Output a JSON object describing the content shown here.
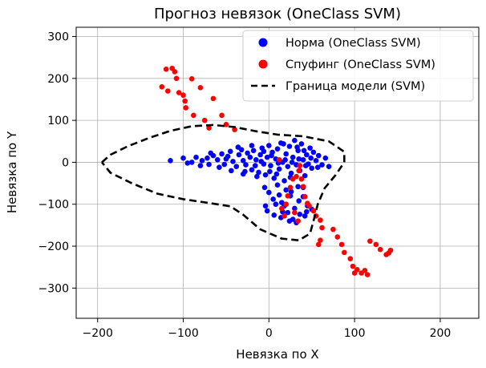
{
  "chart_data": {
    "type": "scatter",
    "title": "Прогноз невязок (OneClass SVM)",
    "xlabel": "Невязка по X",
    "ylabel": "Невязка по Y",
    "xlim": [
      -225,
      245
    ],
    "ylim": [
      -372,
      322
    ],
    "xticks": [
      -200,
      -100,
      0,
      100,
      200
    ],
    "yticks": [
      -300,
      -200,
      -100,
      0,
      100,
      200,
      300
    ],
    "xtick_labels": [
      "−200",
      "−100",
      "0",
      "100",
      "200"
    ],
    "ytick_labels": [
      "−300",
      "−200",
      "−100",
      "0",
      "100",
      "200",
      "300"
    ],
    "grid": true,
    "legend_position": "top-right",
    "series": [
      {
        "name": "Норма (OneClass SVM)",
        "color": "#0000ff",
        "kind": "points",
        "points": [
          [
            -115,
            4
          ],
          [
            -100,
            10
          ],
          [
            -95,
            -2
          ],
          [
            -85,
            12
          ],
          [
            -78,
            4
          ],
          [
            -72,
            10
          ],
          [
            -70,
            -5
          ],
          [
            -65,
            16
          ],
          [
            -60,
            6
          ],
          [
            -55,
            20
          ],
          [
            -52,
            -5
          ],
          [
            -48,
            14
          ],
          [
            -45,
            26
          ],
          [
            -42,
            2
          ],
          [
            -38,
            -10
          ],
          [
            -35,
            18
          ],
          [
            -32,
            30
          ],
          [
            -30,
            4
          ],
          [
            -27,
            -6
          ],
          [
            -25,
            22
          ],
          [
            -22,
            12
          ],
          [
            -20,
            -18
          ],
          [
            -18,
            28
          ],
          [
            -15,
            6
          ],
          [
            -12,
            -24
          ],
          [
            -10,
            18
          ],
          [
            -8,
            34
          ],
          [
            -6,
            -4
          ],
          [
            -4,
            -30
          ],
          [
            -2,
            12
          ],
          [
            0,
            40
          ],
          [
            2,
            -8
          ],
          [
            4,
            24
          ],
          [
            6,
            -38
          ],
          [
            8,
            8
          ],
          [
            10,
            32
          ],
          [
            12,
            -16
          ],
          [
            14,
            46
          ],
          [
            16,
            0
          ],
          [
            18,
            -44
          ],
          [
            20,
            20
          ],
          [
            22,
            -10
          ],
          [
            24,
            38
          ],
          [
            26,
            -26
          ],
          [
            28,
            12
          ],
          [
            30,
            52
          ],
          [
            32,
            -6
          ],
          [
            34,
            28
          ],
          [
            36,
            -20
          ],
          [
            38,
            44
          ],
          [
            40,
            6
          ],
          [
            42,
            -32
          ],
          [
            44,
            18
          ],
          [
            46,
            -4
          ],
          [
            48,
            34
          ],
          [
            50,
            -14
          ],
          [
            52,
            24
          ],
          [
            55,
            4
          ],
          [
            58,
            16
          ],
          [
            62,
            -6
          ],
          [
            66,
            10
          ],
          [
            70,
            -10
          ],
          [
            -90,
            0
          ],
          [
            -80,
            -8
          ],
          [
            -68,
            22
          ],
          [
            -58,
            -12
          ],
          [
            -50,
            8
          ],
          [
            -44,
            -20
          ],
          [
            -36,
            36
          ],
          [
            -28,
            -22
          ],
          [
            -20,
            40
          ],
          [
            -14,
            -34
          ],
          [
            -6,
            26
          ],
          [
            1,
            -22
          ],
          [
            9,
            -28
          ],
          [
            17,
            44
          ],
          [
            25,
            -36
          ],
          [
            33,
            36
          ],
          [
            41,
            28
          ],
          [
            49,
            10
          ],
          [
            57,
            -12
          ],
          [
            -30,
            -28
          ],
          [
            -16,
            -8
          ],
          [
            -9,
            2
          ],
          [
            3,
            16
          ],
          [
            11,
            -2
          ],
          [
            19,
            6
          ],
          [
            27,
            0
          ],
          [
            35,
            8
          ],
          [
            43,
            -8
          ],
          [
            -5,
            -60
          ],
          [
            0,
            -72
          ],
          [
            5,
            -88
          ],
          [
            10,
            -54
          ],
          [
            15,
            -96
          ],
          [
            20,
            -66
          ],
          [
            25,
            -80
          ],
          [
            30,
            -110
          ],
          [
            35,
            -92
          ],
          [
            40,
            -60
          ],
          [
            45,
            -104
          ],
          [
            -2,
            -116
          ],
          [
            6,
            -126
          ],
          [
            14,
            -132
          ],
          [
            22,
            -120
          ],
          [
            28,
            -136
          ],
          [
            36,
            -124
          ],
          [
            44,
            -118
          ],
          [
            50,
            -112
          ],
          [
            12,
            -78
          ],
          [
            18,
            -104
          ],
          [
            26,
            -70
          ],
          [
            34,
            -58
          ],
          [
            40,
            -82
          ],
          [
            8,
            -100
          ],
          [
            -4,
            -104
          ],
          [
            24,
            -140
          ],
          [
            32,
            -144
          ],
          [
            42,
            -128
          ],
          [
            16,
            -118
          ]
        ]
      },
      {
        "name": "Спуфинг (OneClass SVM)",
        "color": "#ff0000",
        "kind": "points",
        "points": [
          [
            -120,
            222
          ],
          [
            -110,
            216
          ],
          [
            -113,
            224
          ],
          [
            -125,
            180
          ],
          [
            -118,
            170
          ],
          [
            -108,
            200
          ],
          [
            -105,
            166
          ],
          [
            -100,
            160
          ],
          [
            -98,
            146
          ],
          [
            -97,
            130
          ],
          [
            -90,
            199
          ],
          [
            -80,
            178
          ],
          [
            -88,
            112
          ],
          [
            -75,
            100
          ],
          [
            -70,
            82
          ],
          [
            -65,
            152
          ],
          [
            -55,
            112
          ],
          [
            -50,
            90
          ],
          [
            -40,
            78
          ],
          [
            35,
            -20
          ],
          [
            38,
            -40
          ],
          [
            40,
            -58
          ],
          [
            42,
            -82
          ],
          [
            45,
            -98
          ],
          [
            47,
            -104
          ],
          [
            52,
            -116
          ],
          [
            55,
            -128
          ],
          [
            60,
            -138
          ],
          [
            62,
            -156
          ],
          [
            75,
            -160
          ],
          [
            80,
            -178
          ],
          [
            85,
            -196
          ],
          [
            88,
            -215
          ],
          [
            95,
            -230
          ],
          [
            98,
            -248
          ],
          [
            103,
            -256
          ],
          [
            108,
            -264
          ],
          [
            100,
            -264
          ],
          [
            112,
            -258
          ],
          [
            115,
            -268
          ],
          [
            118,
            -188
          ],
          [
            125,
            -196
          ],
          [
            130,
            -208
          ],
          [
            137,
            -220
          ],
          [
            140,
            -216
          ],
          [
            142,
            -210
          ],
          [
            58,
            -196
          ],
          [
            60,
            -186
          ],
          [
            15,
            -110
          ],
          [
            18,
            -128
          ],
          [
            22,
            -80
          ],
          [
            25,
            -60
          ],
          [
            28,
            -40
          ],
          [
            32,
            -34
          ],
          [
            36,
            -8
          ],
          [
            12,
            6
          ],
          [
            20,
            -100
          ],
          [
            30,
            -120
          ],
          [
            34,
            -140
          ]
        ]
      },
      {
        "name": "Граница модели (SVM)",
        "color": "#000000",
        "kind": "boundary",
        "points": [
          [
            -195,
            0
          ],
          [
            -185,
            18
          ],
          [
            -165,
            38
          ],
          [
            -140,
            58
          ],
          [
            -115,
            75
          ],
          [
            -90,
            86
          ],
          [
            -65,
            89
          ],
          [
            -40,
            84
          ],
          [
            -15,
            74
          ],
          [
            10,
            66
          ],
          [
            40,
            62
          ],
          [
            70,
            50
          ],
          [
            88,
            25
          ],
          [
            88,
            0
          ],
          [
            78,
            -30
          ],
          [
            65,
            -62
          ],
          [
            57,
            -100
          ],
          [
            52,
            -140
          ],
          [
            48,
            -170
          ],
          [
            35,
            -186
          ],
          [
            15,
            -182
          ],
          [
            -10,
            -160
          ],
          [
            -30,
            -125
          ],
          [
            -45,
            -105
          ],
          [
            -70,
            -97
          ],
          [
            -100,
            -88
          ],
          [
            -130,
            -75
          ],
          [
            -160,
            -50
          ],
          [
            -185,
            -25
          ],
          [
            -195,
            0
          ]
        ]
      }
    ]
  }
}
